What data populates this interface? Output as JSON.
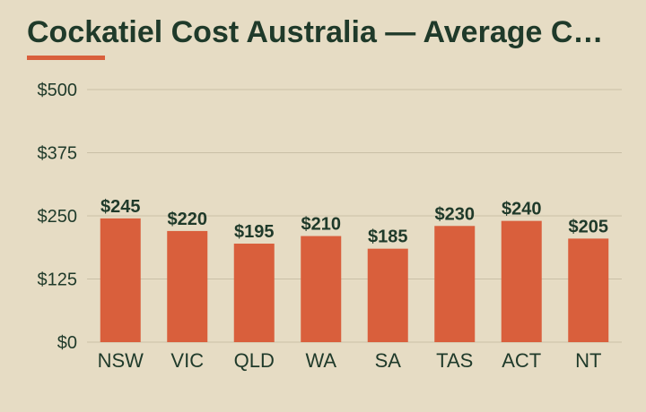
{
  "chart_data": {
    "type": "bar",
    "title": "Cockatiel Cost Australia — Average C…",
    "categories": [
      "NSW",
      "VIC",
      "QLD",
      "WA",
      "SA",
      "TAS",
      "ACT",
      "NT"
    ],
    "values": [
      245,
      220,
      195,
      210,
      185,
      230,
      240,
      205
    ],
    "value_labels": [
      "$245",
      "$220",
      "$195",
      "$210",
      "$185",
      "$230",
      "$240",
      "$205"
    ],
    "y_ticks": [
      0,
      125,
      250,
      375,
      500
    ],
    "y_tick_labels": [
      "$0",
      "$125",
      "$250",
      "$375",
      "$500"
    ],
    "ylim": [
      0,
      500
    ],
    "xlabel": "",
    "ylabel": "",
    "grid": true,
    "bar_color": "#d95f3c",
    "text_color": "#1f3a2a",
    "grid_color": "#c9bfa6",
    "background_color": "#e6dcc4"
  }
}
